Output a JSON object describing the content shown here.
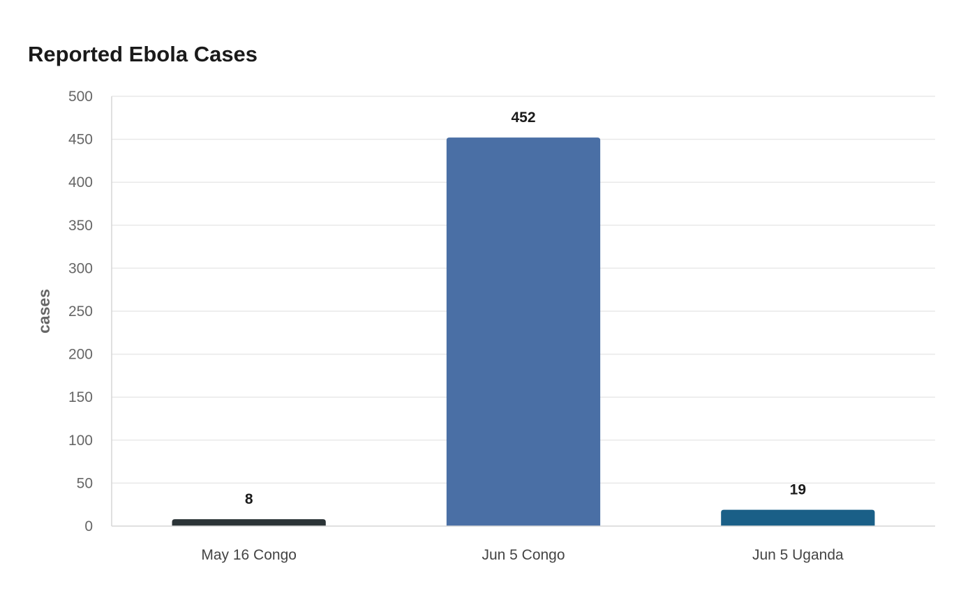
{
  "chart_data": {
    "type": "bar",
    "title": "Reported Ebola Cases",
    "xlabel": "",
    "ylabel": "cases",
    "ylim": [
      0,
      500
    ],
    "yticks": [
      0,
      50,
      100,
      150,
      200,
      250,
      300,
      350,
      400,
      450,
      500
    ],
    "categories": [
      "May 16 Congo",
      "Jun 5 Congo",
      "Jun 5 Uganda"
    ],
    "values": [
      8,
      452,
      19
    ],
    "data_labels": [
      "8",
      "452",
      "19"
    ],
    "colors": [
      "#2b3437",
      "#4a6fa5",
      "#1a5f87"
    ],
    "grid": true,
    "legend": "none"
  }
}
